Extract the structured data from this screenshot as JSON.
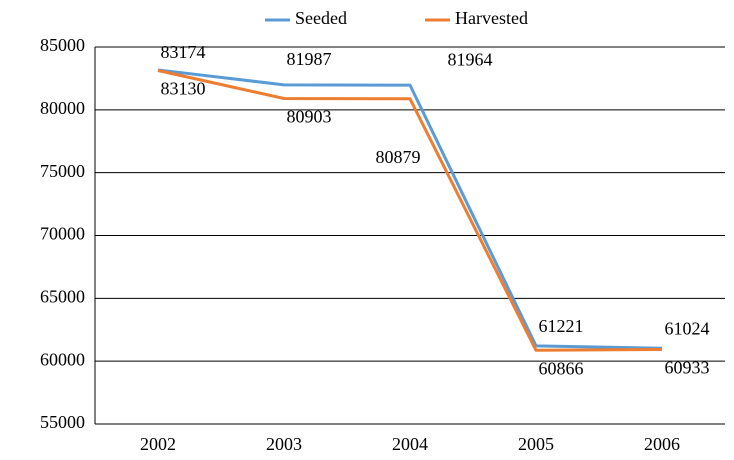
{
  "chart_data": {
    "type": "line",
    "categories": [
      "2002",
      "2003",
      "2004",
      "2005",
      "2006"
    ],
    "series": [
      {
        "name": "Seeded",
        "color": "#5b9bd5",
        "values": [
          83174,
          81987,
          81964,
          61221,
          61024
        ]
      },
      {
        "name": "Harvested",
        "color": "#ed7d31",
        "values": [
          83130,
          80903,
          80879,
          60866,
          60933
        ]
      }
    ],
    "ylim": [
      55000,
      85000
    ],
    "yticks": [
      55000,
      60000,
      65000,
      70000,
      75000,
      80000,
      85000
    ],
    "grid": true,
    "legend": "top"
  }
}
